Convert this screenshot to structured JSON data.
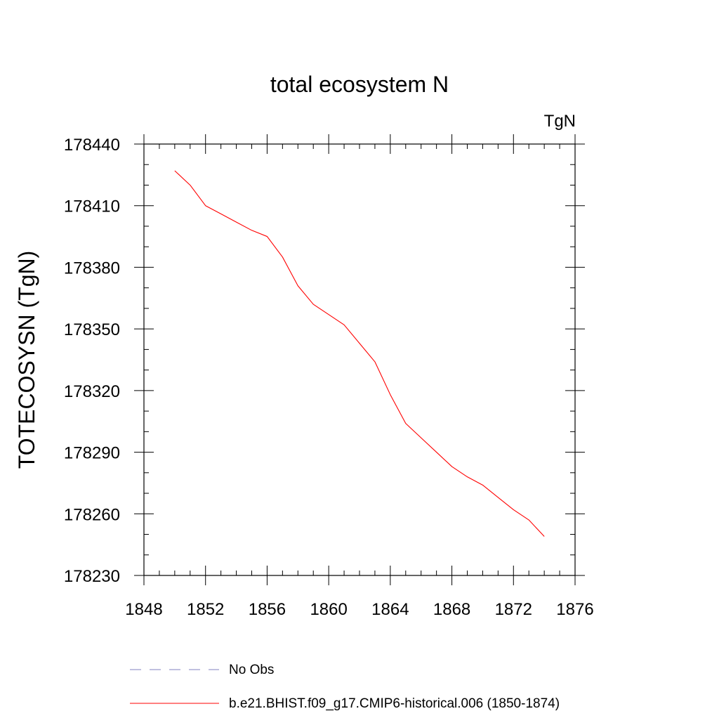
{
  "chart_data": {
    "type": "line",
    "title": "total ecosystem N",
    "units_label": "TgN",
    "ylabel": "TOTECOSYSN  (TgN)",
    "xlabel": "",
    "xlim": [
      1848,
      1876
    ],
    "ylim": [
      178230,
      178440
    ],
    "x_ticks": [
      1848,
      1852,
      1856,
      1860,
      1864,
      1868,
      1872,
      1876
    ],
    "x_tick_labels": [
      "1848",
      "1852",
      "1856",
      "1860",
      "1864",
      "1868",
      "1872",
      "1876"
    ],
    "y_ticks": [
      178230,
      178260,
      178290,
      178320,
      178350,
      178380,
      178410,
      178440
    ],
    "y_tick_labels": [
      "178230",
      "178260",
      "178290",
      "178320",
      "178350",
      "178380",
      "178410",
      "178440"
    ],
    "grid": false,
    "legend_position": "bottom-left",
    "series": [
      {
        "name": "b.e21.BHIST.f09_g17.CMIP6-historical.006 (1850-1874)",
        "color": "#ff0000",
        "dash": "solid",
        "x": [
          1850,
          1851,
          1852,
          1853,
          1854,
          1855,
          1856,
          1857,
          1858,
          1859,
          1860,
          1861,
          1862,
          1863,
          1864,
          1865,
          1866,
          1867,
          1868,
          1869,
          1870,
          1871,
          1872,
          1873,
          1874
        ],
        "y": [
          178427,
          178420,
          178410,
          178406,
          178402,
          178398,
          178395,
          178385,
          178371,
          178362,
          178357,
          178352,
          178343,
          178334,
          178318,
          178304,
          178297,
          178290,
          178283,
          178278,
          178274,
          178268,
          178262,
          178257,
          178249
        ]
      }
    ],
    "legend": [
      {
        "label": "No Obs",
        "color": "#8080c0",
        "dash": "dashed"
      },
      {
        "label": "b.e21.BHIST.f09_g17.CMIP6-historical.006 (1850-1874)",
        "color": "#ff0000",
        "dash": "solid"
      }
    ]
  }
}
